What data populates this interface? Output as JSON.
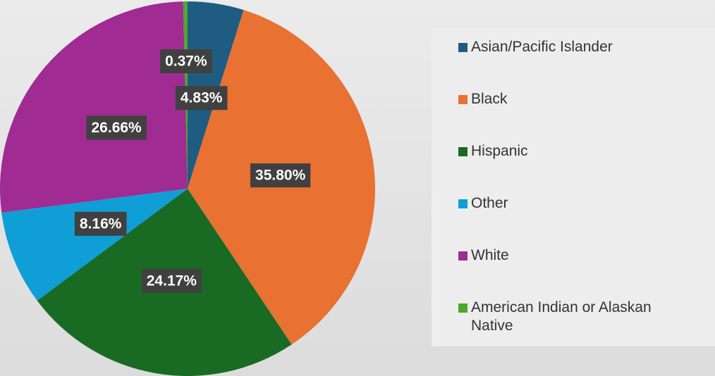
{
  "chart_data": {
    "type": "pie",
    "categories": [
      "Asian/Pacific Islander",
      "Black",
      "Hispanic",
      "Other",
      "White",
      "American Indian or Alaskan Native"
    ],
    "values": [
      4.83,
      35.8,
      24.17,
      8.16,
      26.66,
      0.37
    ],
    "value_labels": [
      "4.83%",
      "35.80%",
      "24.17%",
      "8.16%",
      "26.66%",
      "0.37%"
    ],
    "colors": [
      "#1f5c82",
      "#e97132",
      "#196b24",
      "#0f9ed5",
      "#a02b93",
      "#4ea72e"
    ],
    "legend": "right"
  }
}
